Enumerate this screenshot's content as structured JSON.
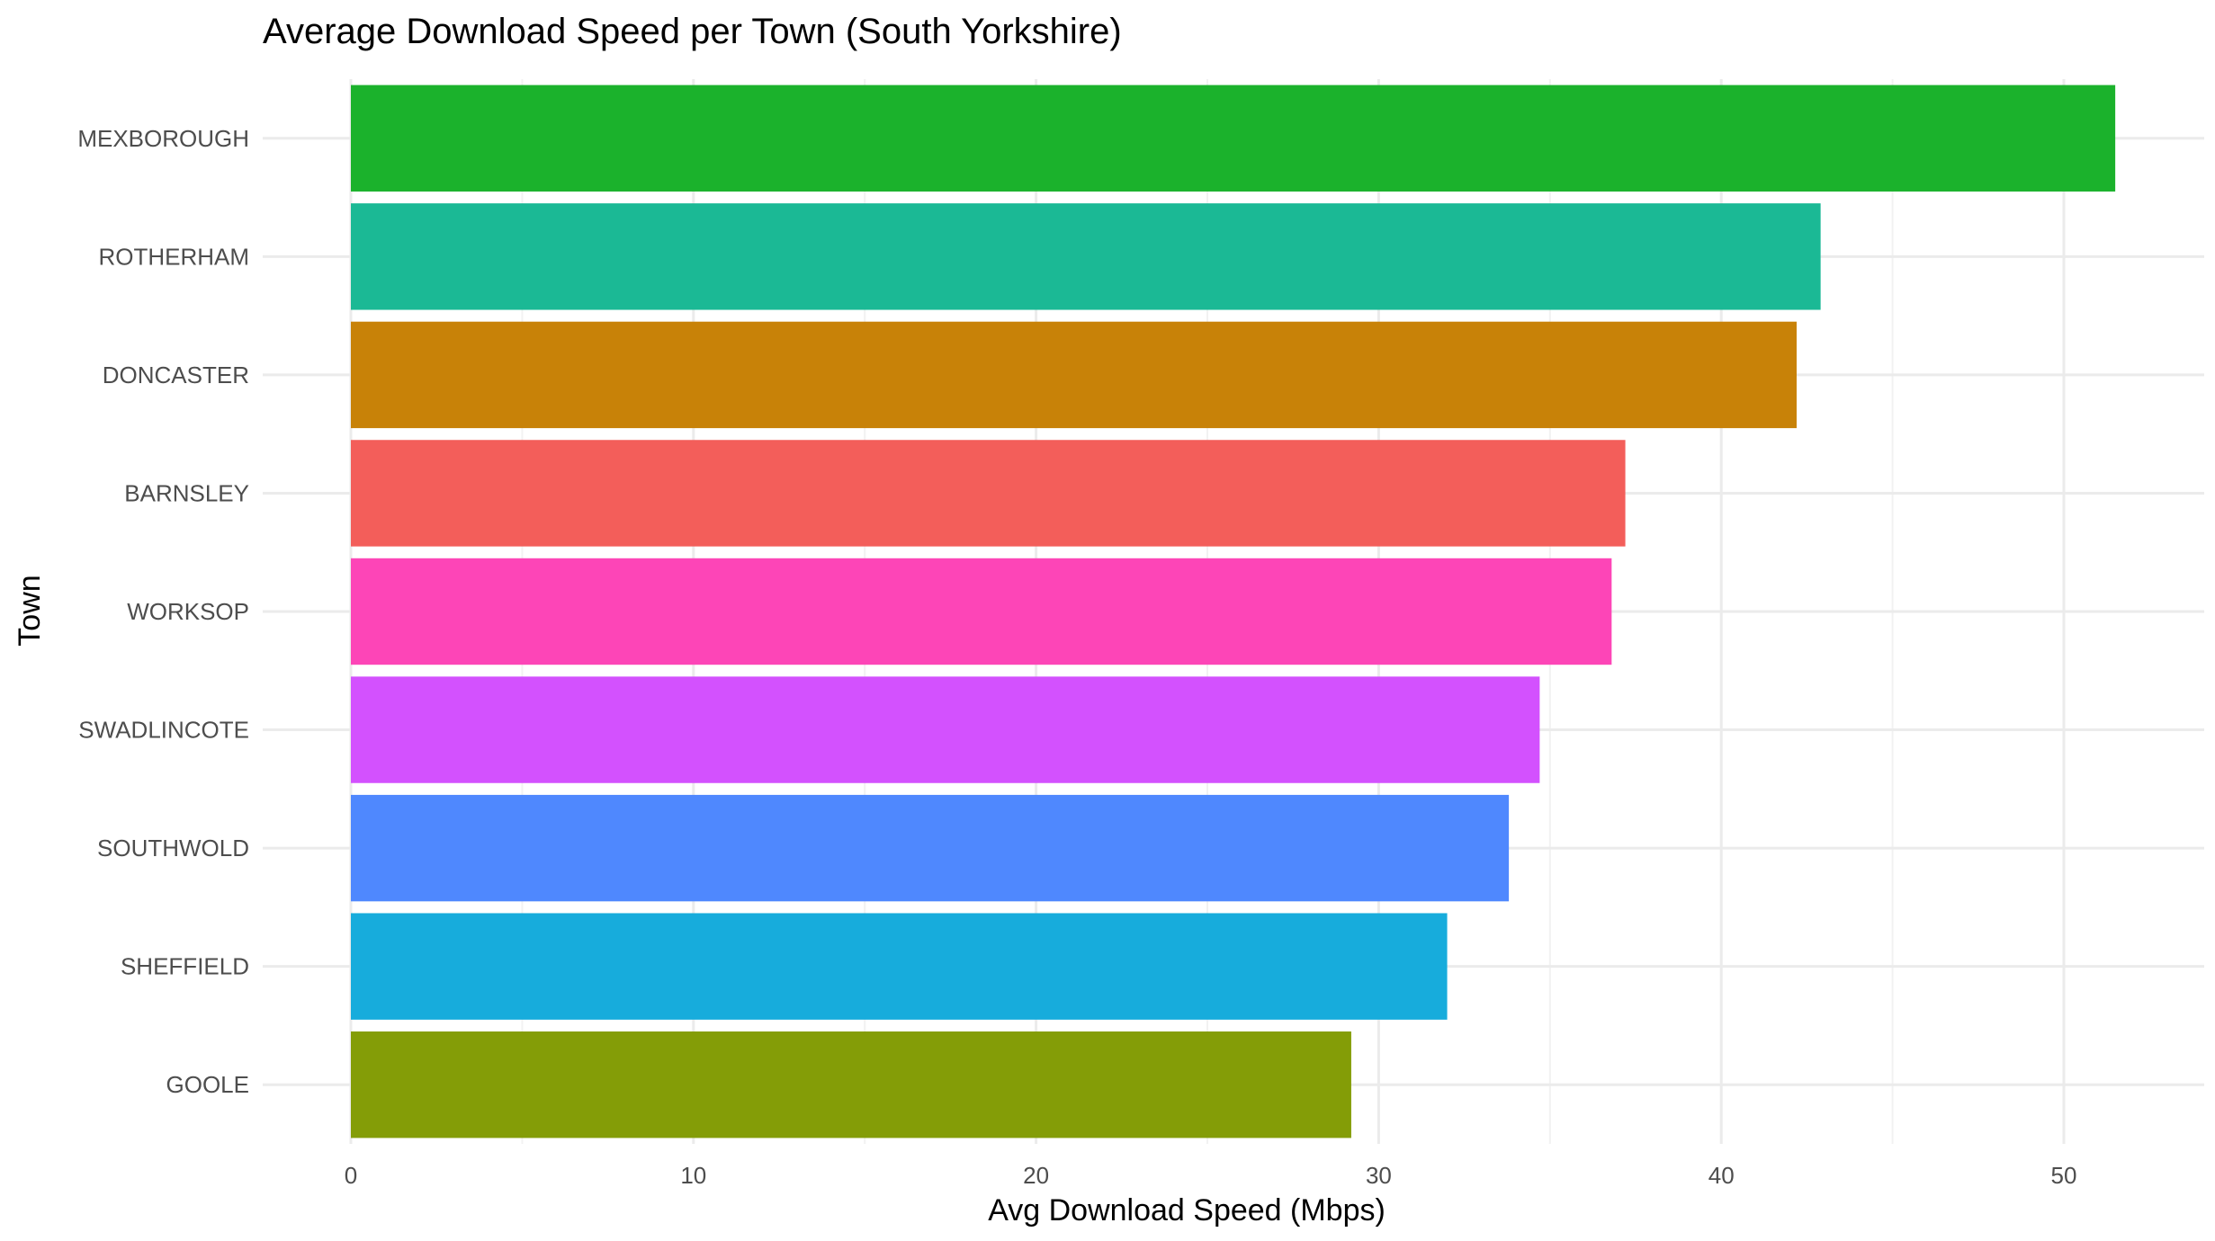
{
  "chart_data": {
    "type": "bar",
    "orientation": "horizontal",
    "title": "Average Download Speed per Town (South Yorkshire)",
    "xlabel": "Avg Download Speed (Mbps)",
    "ylabel": "Town",
    "xlim": [
      0,
      54
    ],
    "x_ticks": [
      0,
      10,
      20,
      30,
      40,
      50
    ],
    "grid": true,
    "legend": "none",
    "categories": [
      "MEXBOROUGH",
      "ROTHERHAM",
      "DONCASTER",
      "BARNSLEY",
      "WORKSOP",
      "SWADLINCOTE",
      "SOUTHWOLD",
      "SHEFFIELD",
      "GOOLE"
    ],
    "values": [
      51.5,
      42.9,
      42.2,
      37.2,
      36.8,
      34.7,
      33.8,
      32.0,
      29.2
    ],
    "colors": [
      "#1bb22c",
      "#1bb995",
      "#c88208",
      "#f35e5a",
      "#fd45b7",
      "#d351fe",
      "#4f88fe",
      "#17acdc",
      "#849d07"
    ]
  }
}
